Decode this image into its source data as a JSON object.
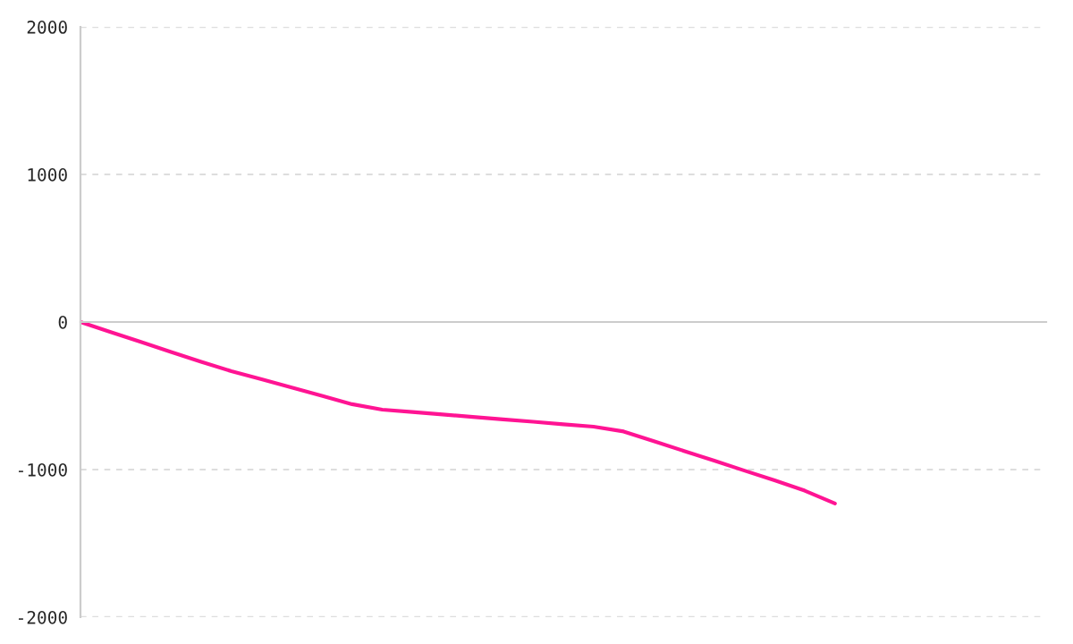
{
  "chart_data": {
    "type": "line",
    "categories": [
      null,
      null,
      null,
      null,
      null,
      null,
      null,
      null,
      null,
      null,
      null,
      null,
      null,
      null,
      null,
      null,
      null,
      null,
      null,
      null,
      null,
      null,
      null,
      null,
      null,
      null,
      null,
      null,
      null,
      null,
      null,
      null,
      null
    ],
    "series": [
      {
        "color": "#ff1493",
        "values": [
          0,
          -68,
          -135,
          -203,
          -270,
          -333,
          -388,
          -444,
          -500,
          -557,
          -594,
          -610,
          -627,
          -643,
          -660,
          -676,
          -693,
          -709,
          -742,
          -808,
          -874,
          -940,
          -1007,
          -1073,
          -1143,
          -1230,
          null,
          null,
          null,
          null,
          null,
          null,
          null
        ]
      }
    ],
    "ylim": [
      -2000,
      2000
    ],
    "yticks": [
      -2000,
      -1000,
      0,
      1000,
      2000
    ],
    "tick_labels": "y",
    "grid": "y",
    "line_style": "solid",
    "marker": "none"
  }
}
